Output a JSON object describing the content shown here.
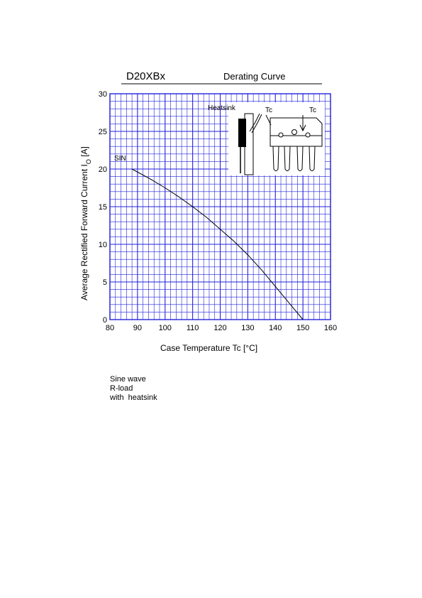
{
  "header": {
    "part_number": "D20XBx",
    "title": "Derating Curve"
  },
  "chart_data": {
    "type": "line",
    "xlabel": "Case Temperature  Tc  [°C]",
    "ylabel": "Average Rectified Forward Current  I",
    "ylabel_subscript": "O",
    "ylabel_unit": " [A]",
    "xlim": [
      80,
      160
    ],
    "ylim": [
      0,
      30
    ],
    "x_ticks": [
      80,
      90,
      100,
      110,
      120,
      130,
      140,
      150,
      160
    ],
    "y_ticks": [
      0,
      5,
      10,
      15,
      20,
      25,
      30
    ],
    "grid": true,
    "series": [
      {
        "name": "SIN",
        "x": [
          88,
          95,
          100,
          105,
          110,
          115,
          120,
          125,
          130,
          135,
          140,
          145,
          150
        ],
        "y": [
          20,
          18.6,
          17.5,
          16.3,
          15.0,
          13.6,
          12.0,
          10.4,
          8.6,
          6.6,
          4.4,
          2.2,
          0
        ]
      }
    ]
  },
  "inset": {
    "heatsink_label": "Heatsink",
    "tc_label_left": "Tc",
    "tc_label_right": "Tc"
  },
  "notes": [
    "Sine wave",
    "R-load",
    "with  heatsink"
  ],
  "colors": {
    "grid": "#2222dd",
    "curve": "#000000"
  }
}
